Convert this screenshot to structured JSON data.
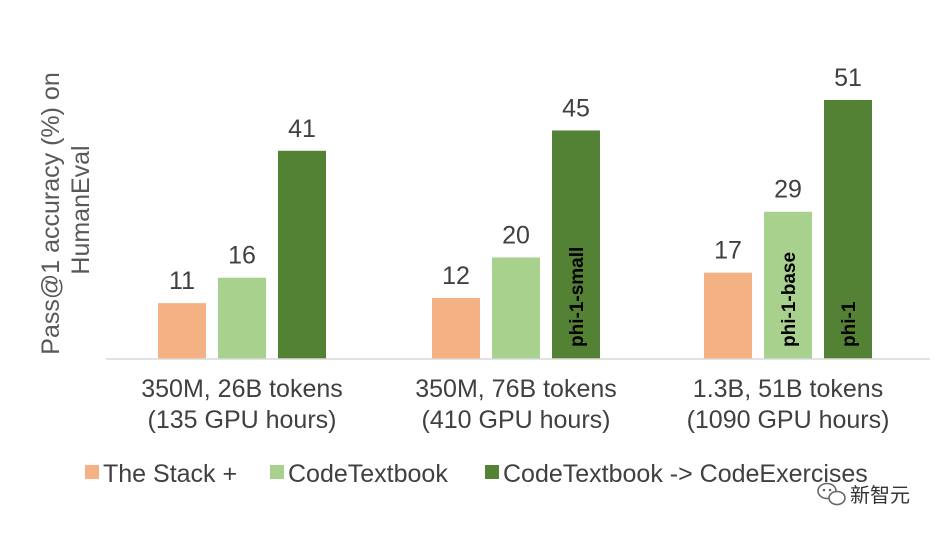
{
  "chart_data": {
    "type": "bar",
    "ylabel_lines": [
      "Pass@1 accuracy (%) on",
      "HumanEval"
    ],
    "categories": [
      [
        "350M, 26B tokens",
        "(135 GPU hours)"
      ],
      [
        "350M, 76B tokens",
        "(410 GPU hours)"
      ],
      [
        "1.3B, 51B tokens",
        "(1090 GPU hours)"
      ]
    ],
    "series": [
      {
        "name": "The Stack +",
        "color": "#f4b183",
        "values": [
          11,
          12,
          17
        ],
        "annotations": [
          "",
          "",
          ""
        ]
      },
      {
        "name": "CodeTextbook",
        "color": "#a9d18e",
        "values": [
          16,
          20,
          29
        ],
        "annotations": [
          "",
          "",
          "phi-1-base"
        ]
      },
      {
        "name": "CodeTextbook -> CodeExercises",
        "color": "#548235",
        "values": [
          41,
          45,
          51
        ],
        "annotations": [
          "",
          "phi-1-small",
          "phi-1"
        ]
      }
    ],
    "ylim": [
      0,
      55
    ],
    "grid": false,
    "legend_position": "bottom"
  },
  "watermark": {
    "text": "新智元",
    "icon": "wechat-icon"
  }
}
